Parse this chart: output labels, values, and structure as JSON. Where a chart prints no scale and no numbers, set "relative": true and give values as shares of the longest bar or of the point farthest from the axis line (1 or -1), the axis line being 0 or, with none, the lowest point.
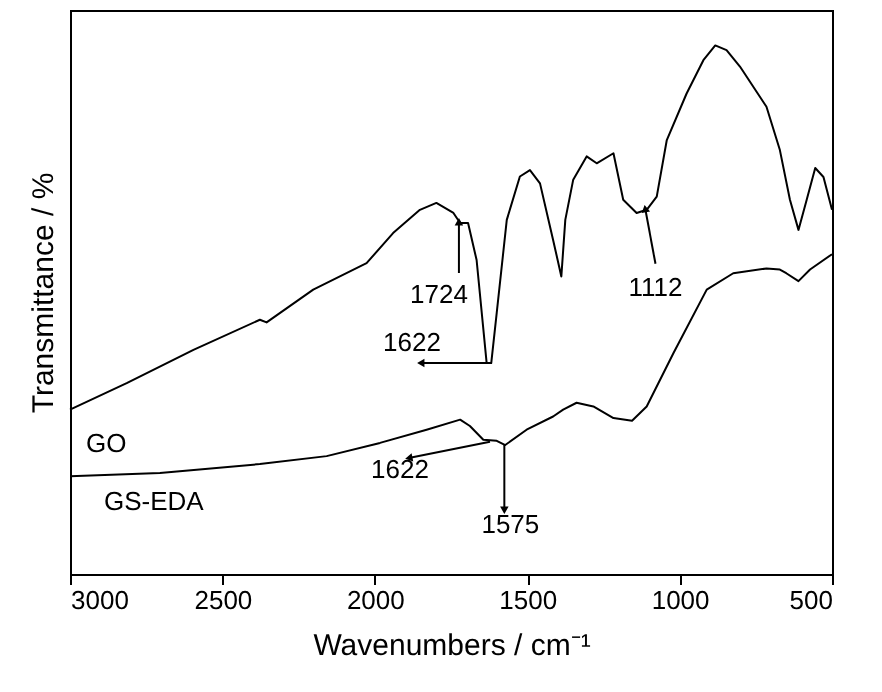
{
  "chart_data": {
    "type": "line",
    "relative": true,
    "xlabel": "Wavenumbers / cm⁻¹",
    "ylabel": "Transmittance / %",
    "xlim": [
      3000,
      500
    ],
    "xticks": [
      3000,
      2500,
      2000,
      1500,
      1000,
      500
    ],
    "marker": "none",
    "line_style": "solid",
    "series": [
      {
        "name": "GO",
        "color": "#000000",
        "x": [
          3000,
          2814,
          2595,
          2377,
          2355,
          2202,
          2027,
          1940,
          1852,
          1798,
          1742,
          1720,
          1694,
          1666,
          1633,
          1618,
          1600,
          1567,
          1524,
          1491,
          1458,
          1415,
          1388,
          1375,
          1349,
          1305,
          1272,
          1217,
          1185,
          1141,
          1108,
          1075,
          1042,
          977,
          922,
          883,
          846,
          802,
          715,
          671,
          638,
          610,
          583,
          555,
          528,
          500
        ],
        "values": [
          0.311,
          0.361,
          0.424,
          0.481,
          0.476,
          0.538,
          0.588,
          0.645,
          0.689,
          0.702,
          0.683,
          0.664,
          0.664,
          0.594,
          0.399,
          0.399,
          0.494,
          0.67,
          0.752,
          0.764,
          0.739,
          0.632,
          0.563,
          0.67,
          0.746,
          0.79,
          0.777,
          0.796,
          0.708,
          0.683,
          0.689,
          0.714,
          0.821,
          0.909,
          0.972,
          1.0,
          0.991,
          0.96,
          0.884,
          0.802,
          0.708,
          0.651,
          0.708,
          0.768,
          0.751,
          0.689
        ]
      },
      {
        "name": "GS-EDA",
        "color": "#000000",
        "x": [
          3000,
          2705,
          2377,
          2158,
          1983,
          1830,
          1720,
          1688,
          1644,
          1600,
          1572,
          1502,
          1415,
          1382,
          1338,
          1283,
          1217,
          1156,
          1108,
          1020,
          911,
          824,
          715,
          671,
          650,
          610,
          572,
          500
        ],
        "values": [
          0.185,
          0.191,
          0.208,
          0.223,
          0.248,
          0.273,
          0.292,
          0.28,
          0.254,
          0.252,
          0.244,
          0.273,
          0.298,
          0.311,
          0.324,
          0.317,
          0.295,
          0.29,
          0.317,
          0.418,
          0.538,
          0.569,
          0.578,
          0.576,
          0.569,
          0.554,
          0.576,
          0.605
        ]
      }
    ],
    "annotations": [
      {
        "text": "1724",
        "x": 1724,
        "y": 0.664
      },
      {
        "text": "1622",
        "x": 1622,
        "y": 0.399
      },
      {
        "text": "1112",
        "x": 1112,
        "y": 0.689
      },
      {
        "text": "1622",
        "x": 1622,
        "y": 0.25
      },
      {
        "text": "1575",
        "x": 1575,
        "y": 0.244
      }
    ]
  }
}
